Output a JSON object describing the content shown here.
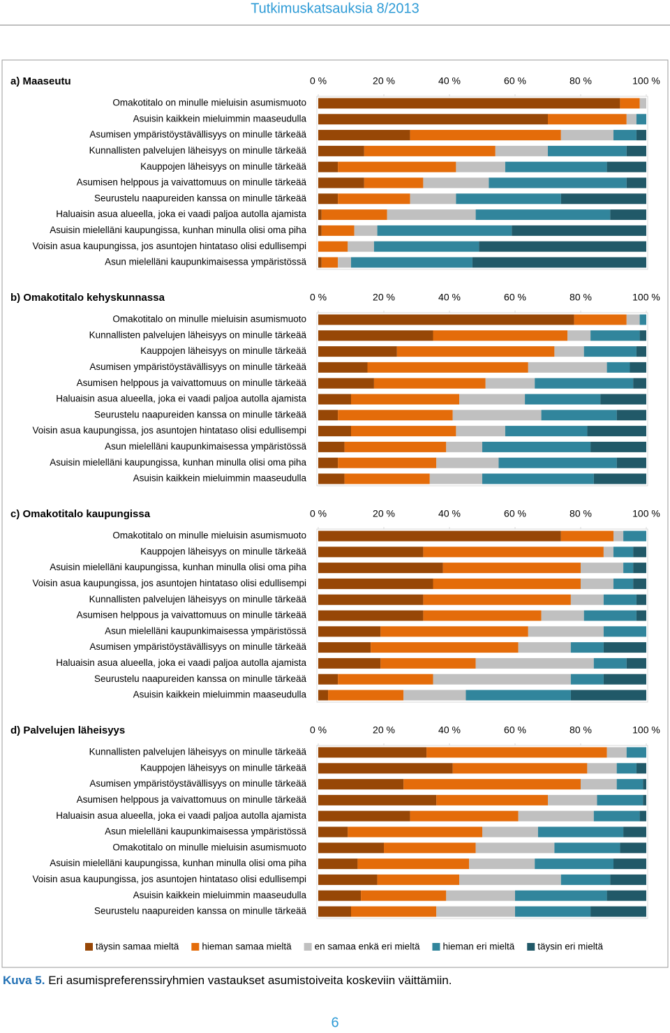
{
  "header": "Tutkimuskatsauksia 8/2013",
  "caption": {
    "label": "Kuva 5.",
    "text": "Eri asumispreferenssiryhmien vastaukset asumistoiveita koskeviin väittämiin."
  },
  "page_number": "6",
  "chart_data": [
    {
      "type": "stacked-bar",
      "title": "a) Maaseutu",
      "categories": [
        "Omakotitalo on minulle mieluisin asumismuoto",
        "Asuisin kaikkein mieluimmin maaseudulla",
        "Asumisen ympäristöystävällisyys on minulle tärkeää",
        "Kunnallisten palvelujen läheisyys on minulle tärkeää",
        "Kauppojen läheisyys on minulle tärkeää",
        "Asumisen helppous ja vaivattomuus on minulle tärkeää",
        "Seurustelu naapureiden kanssa on minulle tärkeää",
        "Haluaisin asua alueella, joka ei vaadi paljoa autolla ajamista",
        "Asuisin mielelläni kaupungissa, kunhan minulla olisi oma piha",
        "Voisin asua kaupungissa, jos asuntojen hintataso olisi edullisempi",
        "Asun mielelläni kaupunkimaisessa ympäristössä"
      ],
      "series": [
        {
          "name": "täysin samaa mieltä",
          "color": "#974706",
          "values": [
            92,
            70,
            28,
            14,
            6,
            14,
            6,
            1,
            1,
            0,
            1
          ]
        },
        {
          "name": "hieman samaa mieltä",
          "color": "#e46c0a",
          "values": [
            6,
            24,
            46,
            40,
            36,
            18,
            22,
            20,
            10,
            9,
            5
          ]
        },
        {
          "name": "en samaa enkä eri mieltä",
          "color": "#c0c0c0",
          "values": [
            2,
            3,
            16,
            16,
            15,
            20,
            14,
            27,
            7,
            8,
            4
          ]
        },
        {
          "name": "hieman eri mieltä",
          "color": "#31859c",
          "values": [
            0,
            3,
            7,
            24,
            31,
            42,
            32,
            41,
            41,
            32,
            37
          ]
        },
        {
          "name": "täysin eri mieltä",
          "color": "#215968",
          "values": [
            0,
            0,
            3,
            6,
            12,
            6,
            26,
            11,
            41,
            51,
            53
          ]
        }
      ],
      "xlim": [
        0,
        100
      ],
      "xticks": [
        {
          "value": 0,
          "label": "0 %"
        },
        {
          "value": 20,
          "label": "20 %"
        },
        {
          "value": 40,
          "label": "40 %"
        },
        {
          "value": 60,
          "label": "60 %"
        },
        {
          "value": 80,
          "label": "80 %"
        },
        {
          "value": 100,
          "label": "100 %"
        }
      ]
    },
    {
      "type": "stacked-bar",
      "title": "b) Omakotitalo kehyskunnassa",
      "categories": [
        "Omakotitalo on minulle mieluisin asumismuoto",
        "Kunnallisten palvelujen läheisyys on minulle tärkeää",
        "Kauppojen läheisyys on minulle tärkeää",
        "Asumisen ympäristöystävällisyys on minulle tärkeää",
        "Asumisen helppous ja vaivattomuus on minulle tärkeää",
        "Haluaisin asua alueella, joka ei vaadi paljoa autolla ajamista",
        "Seurustelu naapureiden kanssa on minulle tärkeää",
        "Voisin asua kaupungissa, jos asuntojen hintataso olisi edullisempi",
        "Asun mielelläni kaupunkimaisessa ympäristössä",
        "Asuisin mielelläni kaupungissa, kunhan minulla olisi oma piha",
        "Asuisin kaikkein mieluimmin maaseudulla"
      ],
      "series": [
        {
          "name": "täysin samaa mieltä",
          "color": "#974706",
          "values": [
            78,
            35,
            24,
            15,
            17,
            10,
            6,
            10,
            8,
            6,
            8
          ]
        },
        {
          "name": "hieman samaa mieltä",
          "color": "#e46c0a",
          "values": [
            16,
            41,
            48,
            49,
            34,
            33,
            35,
            32,
            31,
            30,
            26
          ]
        },
        {
          "name": "en samaa enkä eri mieltä",
          "color": "#c0c0c0",
          "values": [
            4,
            7,
            9,
            24,
            15,
            20,
            27,
            15,
            11,
            19,
            16
          ]
        },
        {
          "name": "hieman eri mieltä",
          "color": "#31859c",
          "values": [
            2,
            15,
            16,
            7,
            30,
            23,
            23,
            25,
            33,
            36,
            34
          ]
        },
        {
          "name": "täysin eri mieltä",
          "color": "#215968",
          "values": [
            0,
            2,
            3,
            5,
            4,
            14,
            9,
            18,
            17,
            9,
            16
          ]
        }
      ],
      "xlim": [
        0,
        100
      ],
      "xticks": [
        {
          "value": 0,
          "label": "0 %"
        },
        {
          "value": 20,
          "label": "20 %"
        },
        {
          "value": 40,
          "label": "40 %"
        },
        {
          "value": 60,
          "label": "60 %"
        },
        {
          "value": 80,
          "label": "80 %"
        },
        {
          "value": 100,
          "label": "100 %"
        }
      ]
    },
    {
      "type": "stacked-bar",
      "title": "c) Omakotitalo kaupungissa",
      "categories": [
        "Omakotitalo on minulle mieluisin asumismuoto",
        "Kauppojen läheisyys on minulle tärkeää",
        "Asuisin mielelläni kaupungissa, kunhan minulla olisi oma piha",
        "Voisin asua kaupungissa, jos asuntojen hintataso olisi edullisempi",
        "Kunnallisten palvelujen läheisyys on minulle tärkeää",
        "Asumisen helppous ja vaivattomuus on minulle tärkeää",
        "Asun mielelläni kaupunkimaisessa ympäristössä",
        "Asumisen ympäristöystävällisyys on minulle tärkeää",
        "Haluaisin asua alueella, joka ei vaadi paljoa autolla ajamista",
        "Seurustelu naapureiden kanssa on minulle tärkeää",
        "Asuisin kaikkein mieluimmin maaseudulla"
      ],
      "series": [
        {
          "name": "täysin samaa mieltä",
          "color": "#974706",
          "values": [
            74,
            32,
            38,
            35,
            32,
            32,
            19,
            16,
            19,
            6,
            3
          ]
        },
        {
          "name": "hieman samaa mieltä",
          "color": "#e46c0a",
          "values": [
            16,
            55,
            42,
            45,
            45,
            36,
            45,
            45,
            29,
            29,
            23
          ]
        },
        {
          "name": "en samaa enkä eri mieltä",
          "color": "#c0c0c0",
          "values": [
            3,
            3,
            13,
            10,
            10,
            13,
            23,
            16,
            36,
            42,
            19
          ]
        },
        {
          "name": "hieman eri mieltä",
          "color": "#31859c",
          "values": [
            7,
            6,
            3,
            6,
            10,
            16,
            13,
            10,
            10,
            10,
            32
          ]
        },
        {
          "name": "täysin eri mieltä",
          "color": "#215968",
          "values": [
            0,
            4,
            4,
            4,
            3,
            3,
            0,
            13,
            6,
            13,
            23
          ]
        }
      ],
      "xlim": [
        0,
        100
      ],
      "xticks": [
        {
          "value": 0,
          "label": "0 %"
        },
        {
          "value": 20,
          "label": "20 %"
        },
        {
          "value": 40,
          "label": "40 %"
        },
        {
          "value": 60,
          "label": "60 %"
        },
        {
          "value": 80,
          "label": "80 %"
        },
        {
          "value": 100,
          "label": "100 %"
        }
      ]
    },
    {
      "type": "stacked-bar",
      "title": "d) Palvelujen läheisyys",
      "categories": [
        "Kunnallisten palvelujen läheisyys on minulle tärkeää",
        "Kauppojen läheisyys on minulle tärkeää",
        "Asumisen ympäristöystävällisyys on minulle tärkeää",
        "Asumisen helppous ja vaivattomuus on minulle tärkeää",
        "Haluaisin asua alueella, joka ei vaadi paljoa autolla ajamista",
        "Asun mielelläni kaupunkimaisessa ympäristössä",
        "Omakotitalo on minulle mieluisin asumismuoto",
        "Asuisin mielelläni kaupungissa, kunhan minulla olisi oma piha",
        "Voisin asua kaupungissa, jos asuntojen hintataso olisi edullisempi",
        "Asuisin kaikkein mieluimmin maaseudulla",
        "Seurustelu naapureiden kanssa on minulle tärkeää"
      ],
      "series": [
        {
          "name": "täysin samaa mieltä",
          "color": "#974706",
          "values": [
            33,
            41,
            26,
            36,
            28,
            9,
            20,
            12,
            18,
            13,
            10
          ]
        },
        {
          "name": "hieman samaa mieltä",
          "color": "#e46c0a",
          "values": [
            55,
            41,
            54,
            34,
            33,
            41,
            28,
            34,
            25,
            26,
            26
          ]
        },
        {
          "name": "en samaa enkä eri mieltä",
          "color": "#c0c0c0",
          "values": [
            6,
            9,
            11,
            15,
            23,
            17,
            24,
            20,
            31,
            21,
            24
          ]
        },
        {
          "name": "hieman eri mieltä",
          "color": "#31859c",
          "values": [
            6,
            6,
            8,
            14,
            14,
            26,
            20,
            24,
            15,
            28,
            23
          ]
        },
        {
          "name": "täysin eri mieltä",
          "color": "#215968",
          "values": [
            0,
            3,
            1,
            1,
            2,
            7,
            8,
            10,
            11,
            12,
            17
          ]
        }
      ],
      "xlim": [
        0,
        100
      ],
      "xticks": [
        {
          "value": 0,
          "label": "0 %"
        },
        {
          "value": 20,
          "label": "20 %"
        },
        {
          "value": 40,
          "label": "40 %"
        },
        {
          "value": 60,
          "label": "60 %"
        },
        {
          "value": 80,
          "label": "80 %"
        },
        {
          "value": 100,
          "label": "100 %"
        }
      ]
    }
  ]
}
